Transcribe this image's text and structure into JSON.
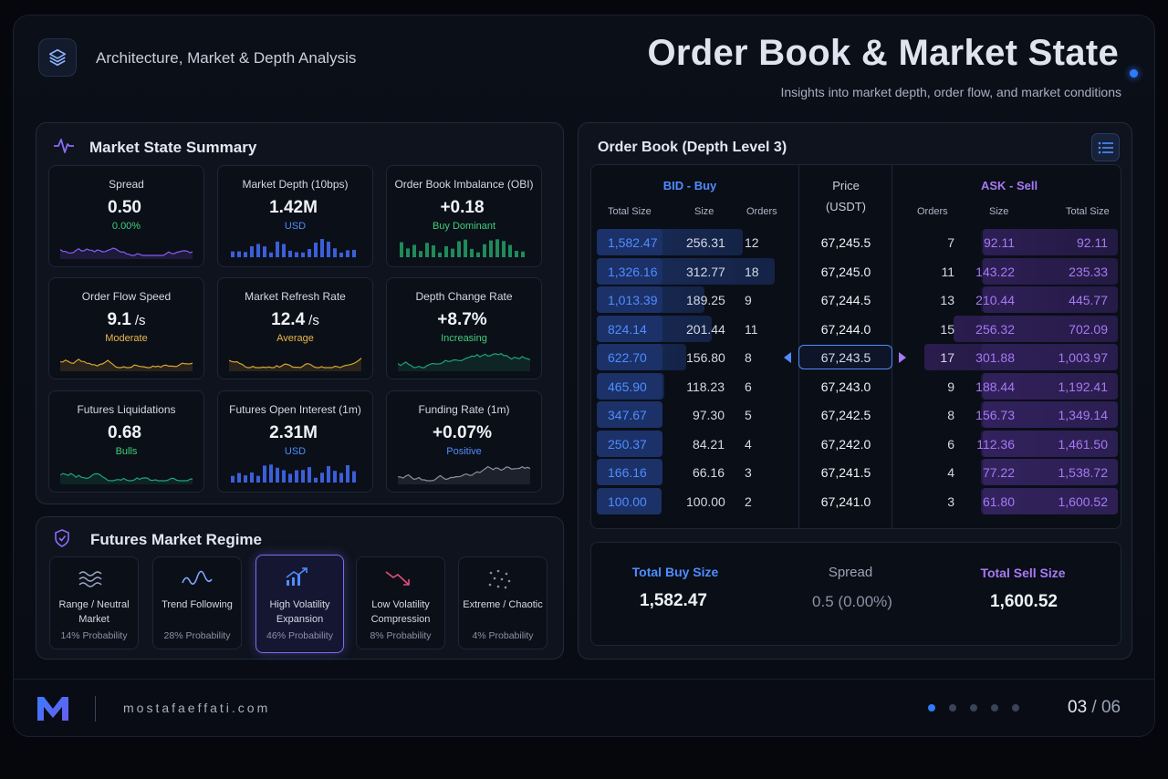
{
  "header": {
    "breadcrumb": "Architecture, Market & Depth Analysis",
    "title": "Order Book & Market State",
    "subtitle": "Insights into market depth, order flow, and market conditions"
  },
  "summary": {
    "title": "Market State Summary",
    "cards": [
      {
        "label": "Spread",
        "value": "0.50",
        "unit": "",
        "sub": "0.00%",
        "sub_color": "#3ecf7a",
        "chart": "line",
        "color": "#8a5cf6"
      },
      {
        "label": "Market Depth (10bps)",
        "value": "1.42M",
        "unit": "",
        "sub": "USD",
        "sub_color": "#4f8dff",
        "chart": "bars",
        "color": "#3b5fd9"
      },
      {
        "label": "Order Book Imbalance (OBI)",
        "value": "+0.18",
        "unit": "",
        "sub": "Buy Dominant",
        "sub_color": "#3ecf7a",
        "chart": "bars",
        "color": "#1f8a5a"
      },
      {
        "label": "Order Flow Speed",
        "value": "9.1",
        "unit": "/s",
        "sub": "Moderate",
        "sub_color": "#e9b949",
        "chart": "line",
        "color": "#d9a232"
      },
      {
        "label": "Market Refresh Rate",
        "value": "12.4",
        "unit": "/s",
        "sub": "Average",
        "sub_color": "#e9b949",
        "chart": "line",
        "color": "#d9a232"
      },
      {
        "label": "Depth Change Rate",
        "value": "+8.7%",
        "unit": "",
        "sub": "Increasing",
        "sub_color": "#3ecf7a",
        "chart": "line",
        "color": "#1fa37a"
      },
      {
        "label": "Futures Liquidations",
        "value": "0.68",
        "unit": "",
        "sub": "Bulls",
        "sub_color": "#3ecf7a",
        "chart": "line",
        "color": "#1fa37a"
      },
      {
        "label": "Futures Open Interest (1m)",
        "value": "2.31M",
        "unit": "",
        "sub": "USD",
        "sub_color": "#4f8dff",
        "chart": "bars",
        "color": "#3b5fd9"
      },
      {
        "label": "Funding Rate (1m)",
        "value": "+0.07%",
        "unit": "",
        "sub": "Positive",
        "sub_color": "#4f8dff",
        "chart": "line",
        "color": "#8a8f9c"
      }
    ]
  },
  "regime": {
    "title": "Futures Market Regime",
    "items": [
      {
        "name": "Range / Neutral Market",
        "prob": "14% Probability",
        "icon": "waves-icon",
        "active": false
      },
      {
        "name": "Trend Following",
        "prob": "28% Probability",
        "icon": "trend-wave-icon",
        "active": false
      },
      {
        "name": "High Volatility Expansion",
        "prob": "46% Probability",
        "icon": "rising-chart-icon",
        "active": true
      },
      {
        "name": "Low Volatility Compression",
        "prob": "8% Probability",
        "icon": "falling-arrow-icon",
        "active": false
      },
      {
        "name": "Extreme / Chaotic",
        "prob": "4% Probability",
        "icon": "scatter-icon",
        "active": false
      }
    ]
  },
  "orderbook": {
    "title": "Order Book (Depth Level 3)",
    "bid_title": "BID - Buy",
    "ask_title": "ASK - Sell",
    "price_title": "Price",
    "price_unit": "(USDT)",
    "bid_cols": [
      "Total Size",
      "Size",
      "Orders"
    ],
    "ask_cols": [
      "Orders",
      "Size",
      "Total Size"
    ],
    "bids": [
      {
        "total": "1,582.47",
        "size": "256.31",
        "orders": "12"
      },
      {
        "total": "1,326.16",
        "size": "312.77",
        "orders": "18"
      },
      {
        "total": "1,013.39",
        "size": "189.25",
        "orders": "9"
      },
      {
        "total": "824.14",
        "size": "201.44",
        "orders": "11"
      },
      {
        "total": "622.70",
        "size": "156.80",
        "orders": "8"
      },
      {
        "total": "465.90",
        "size": "118.23",
        "orders": "6"
      },
      {
        "total": "347.67",
        "size": "97.30",
        "orders": "5"
      },
      {
        "total": "250.37",
        "size": "84.21",
        "orders": "4"
      },
      {
        "total": "166.16",
        "size": "66.16",
        "orders": "3"
      },
      {
        "total": "100.00",
        "size": "100.00",
        "orders": "2"
      }
    ],
    "prices": [
      "67,245.5",
      "67,245.0",
      "67,244.5",
      "67,244.0",
      "67,243.5",
      "67,243.0",
      "67,242.5",
      "67,242.0",
      "67,241.5",
      "67,241.0"
    ],
    "asks": [
      {
        "orders": "7",
        "size": "92.11",
        "total": "92.11"
      },
      {
        "orders": "11",
        "size": "143.22",
        "total": "235.33"
      },
      {
        "orders": "13",
        "size": "210.44",
        "total": "445.77"
      },
      {
        "orders": "15",
        "size": "256.32",
        "total": "702.09"
      },
      {
        "orders": "17",
        "size": "301.88",
        "total": "1,003.97"
      },
      {
        "orders": "9",
        "size": "188.44",
        "total": "1,192.41"
      },
      {
        "orders": "8",
        "size": "156.73",
        "total": "1,349.14"
      },
      {
        "orders": "6",
        "size": "112.36",
        "total": "1,461.50"
      },
      {
        "orders": "4",
        "size": "77.22",
        "total": "1,538.72"
      },
      {
        "orders": "3",
        "size": "61.80",
        "total": "1,600.52"
      }
    ],
    "totals": {
      "buy_label": "Total Buy Size",
      "buy_value": "1,582.47",
      "spread_label": "Spread",
      "spread_value": "0.5 (0.00%)",
      "sell_label": "Total Sell Size",
      "sell_value": "1,600.52"
    }
  },
  "footer": {
    "brand": "M",
    "site": "mostafaeffati.com",
    "page_current": "03",
    "page_sep": " / ",
    "page_total": "06",
    "pages": 5,
    "active_dot": 0
  },
  "colors": {
    "bid": "#4f8dff",
    "ask": "#a779f5",
    "accent": "#2f7bff"
  }
}
